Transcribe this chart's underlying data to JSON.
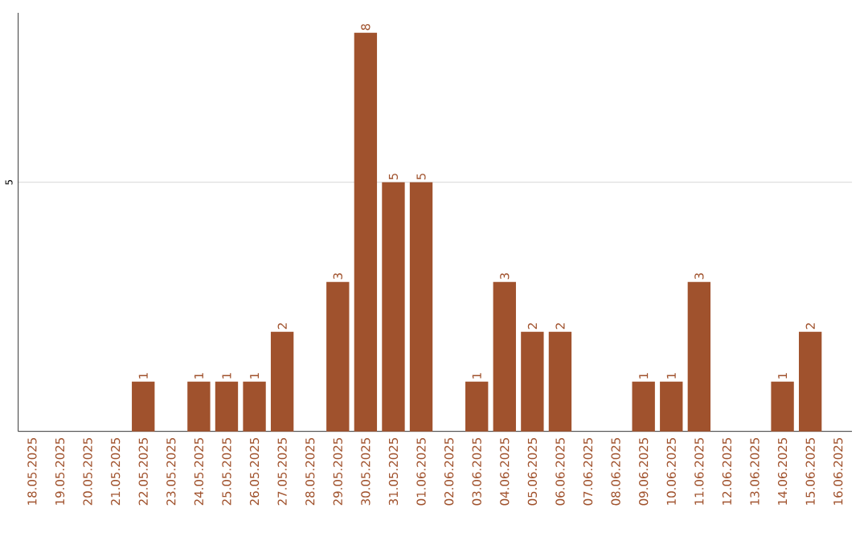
{
  "chart_data": {
    "type": "bar",
    "categories": [
      "18.05.2025",
      "19.05.2025",
      "20.05.2025",
      "21.05.2025",
      "22.05.2025",
      "23.05.2025",
      "24.05.2025",
      "25.05.2025",
      "26.05.2025",
      "27.05.2025",
      "28.05.2025",
      "29.05.2025",
      "30.05.2025",
      "31.05.2025",
      "01.06.2025",
      "02.06.2025",
      "03.06.2025",
      "04.06.2025",
      "05.06.2025",
      "06.06.2025",
      "07.06.2025",
      "08.06.2025",
      "09.06.2025",
      "10.06.2025",
      "11.06.2025",
      "12.06.2025",
      "13.06.2025",
      "14.06.2025",
      "15.06.2025",
      "16.06.2025"
    ],
    "values": [
      0,
      0,
      0,
      0,
      1,
      0,
      1,
      1,
      1,
      2,
      0,
      3,
      8,
      5,
      5,
      0,
      1,
      3,
      2,
      2,
      0,
      0,
      1,
      1,
      3,
      0,
      0,
      1,
      2,
      0
    ],
    "value_labels": [
      null,
      null,
      null,
      null,
      "1",
      null,
      "1",
      "1",
      "1",
      "2",
      null,
      "3",
      "8",
      "5",
      "5",
      null,
      "1",
      "3",
      "2",
      "2",
      null,
      null,
      "1",
      "1",
      "3",
      null,
      null,
      "1",
      "2",
      null
    ],
    "color": "#a0522d",
    "ylim": [
      0,
      8.4
    ],
    "yticks": [
      5
    ],
    "grid": "y"
  }
}
